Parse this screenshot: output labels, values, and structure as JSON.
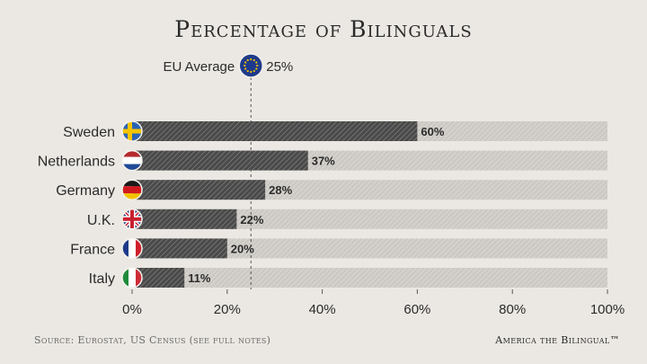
{
  "colors": {
    "bar": "#555555",
    "track": "#c9c6c1",
    "text": "#2b2b2b",
    "eu_blue": "#1f3a8a",
    "eu_star": "#f2c200"
  },
  "chart_data": {
    "type": "bar",
    "title": "Percentage of Bilinguals",
    "categories": [
      "Sweden",
      "Netherlands",
      "Germany",
      "U.K.",
      "France",
      "Italy"
    ],
    "values": [
      60,
      37,
      28,
      22,
      20,
      11
    ],
    "value_labels": [
      "60%",
      "37%",
      "28%",
      "22%",
      "20%",
      "11%"
    ],
    "flags": [
      "sweden-flag",
      "netherlands-flag",
      "germany-flag",
      "uk-flag",
      "france-flag",
      "italy-flag"
    ],
    "orientation": "horizontal",
    "xlim": [
      0,
      100
    ],
    "xticks": [
      0,
      20,
      40,
      60,
      80,
      100
    ],
    "xtick_labels": [
      "0%",
      "20%",
      "40%",
      "60%",
      "80%",
      "100%"
    ],
    "reference_line": {
      "label": "EU Average",
      "value": 25,
      "value_label": "25%",
      "icon": "eu-flag"
    },
    "grid": false
  },
  "footer": {
    "source": "Source: Eurostat, US Census (see full notes)",
    "brand": "America the Bilingual™"
  }
}
